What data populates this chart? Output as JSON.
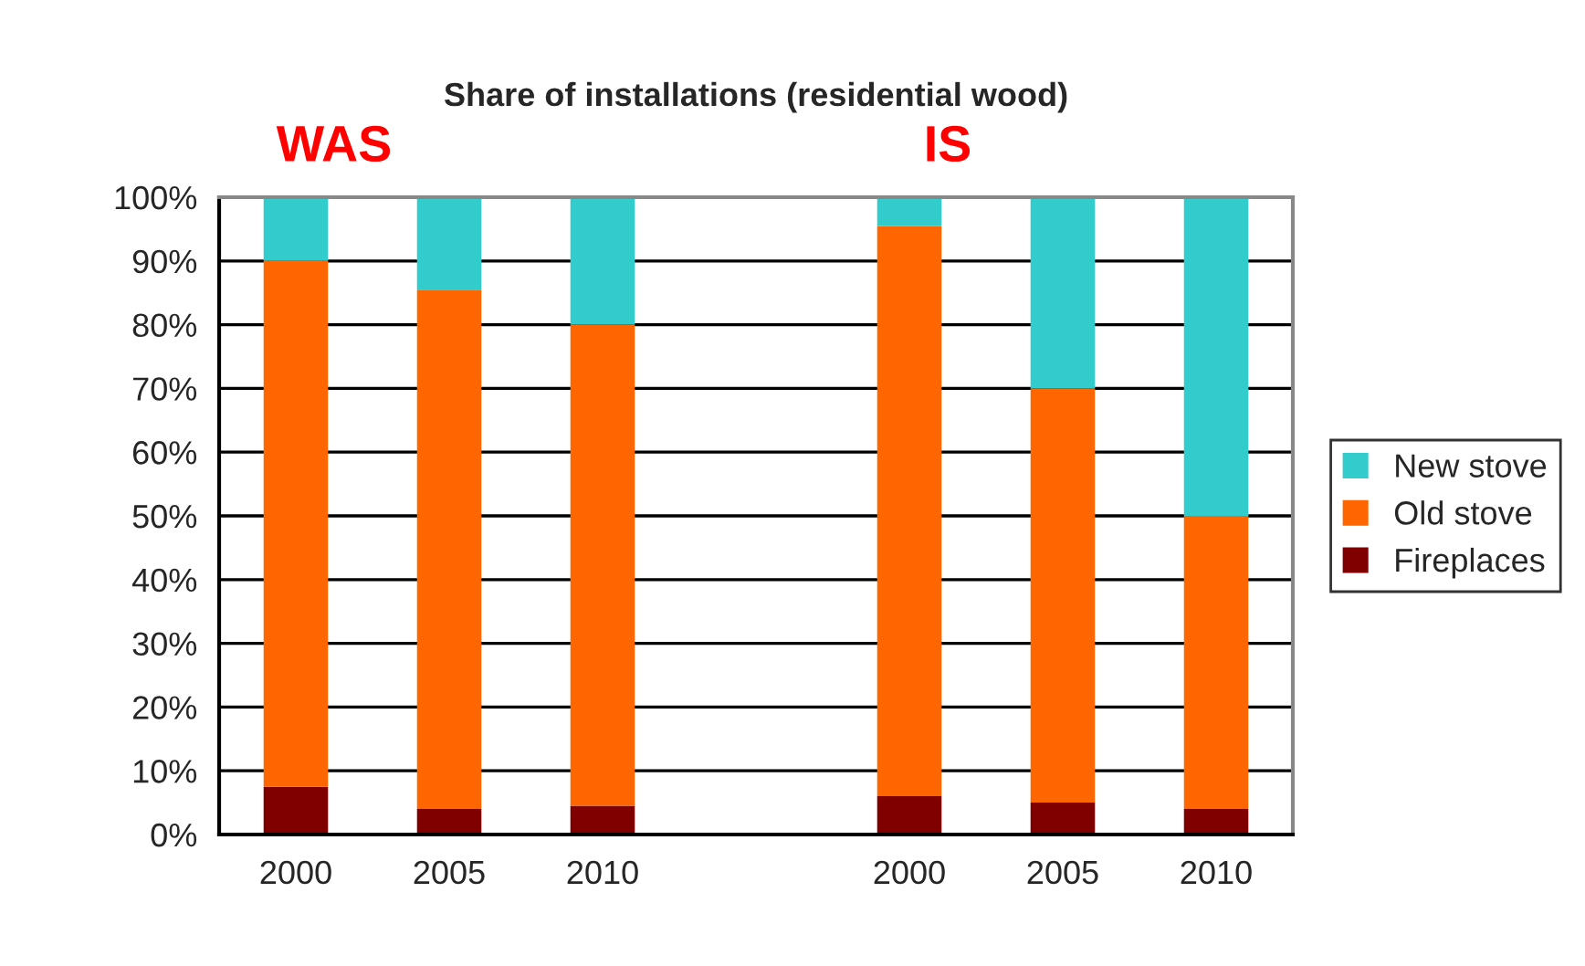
{
  "chart_data": {
    "type": "bar",
    "title": "Share of installations (residential wood)",
    "stacked": true,
    "categories": [
      "2000",
      "2005",
      "2010",
      null,
      "2000",
      "2005",
      "2010"
    ],
    "series": [
      {
        "name": "Fireplaces",
        "color": "#800000",
        "values": [
          7.5,
          4,
          4.5,
          null,
          6,
          5,
          4
        ]
      },
      {
        "name": "Old stove",
        "color": "#ff6600",
        "values": [
          82.5,
          81.5,
          75.5,
          null,
          89.5,
          65,
          46
        ]
      },
      {
        "name": "New stove",
        "color": "#33cccc",
        "values": [
          10,
          14.5,
          20,
          null,
          4.5,
          30,
          50
        ]
      }
    ],
    "ylim": [
      0,
      100
    ],
    "yticks": [
      {
        "value": 0,
        "label": "0%"
      },
      {
        "value": 10,
        "label": "10%"
      },
      {
        "value": 20,
        "label": "20%"
      },
      {
        "value": 30,
        "label": "30%"
      },
      {
        "value": 40,
        "label": "40%"
      },
      {
        "value": 50,
        "label": "50%"
      },
      {
        "value": 60,
        "label": "60%"
      },
      {
        "value": 70,
        "label": "70%"
      },
      {
        "value": 80,
        "label": "80%"
      },
      {
        "value": 90,
        "label": "90%"
      },
      {
        "value": 100,
        "label": "100%"
      }
    ],
    "annotations": [
      "WAS",
      "IS"
    ],
    "grid": "y",
    "legend": "right"
  }
}
